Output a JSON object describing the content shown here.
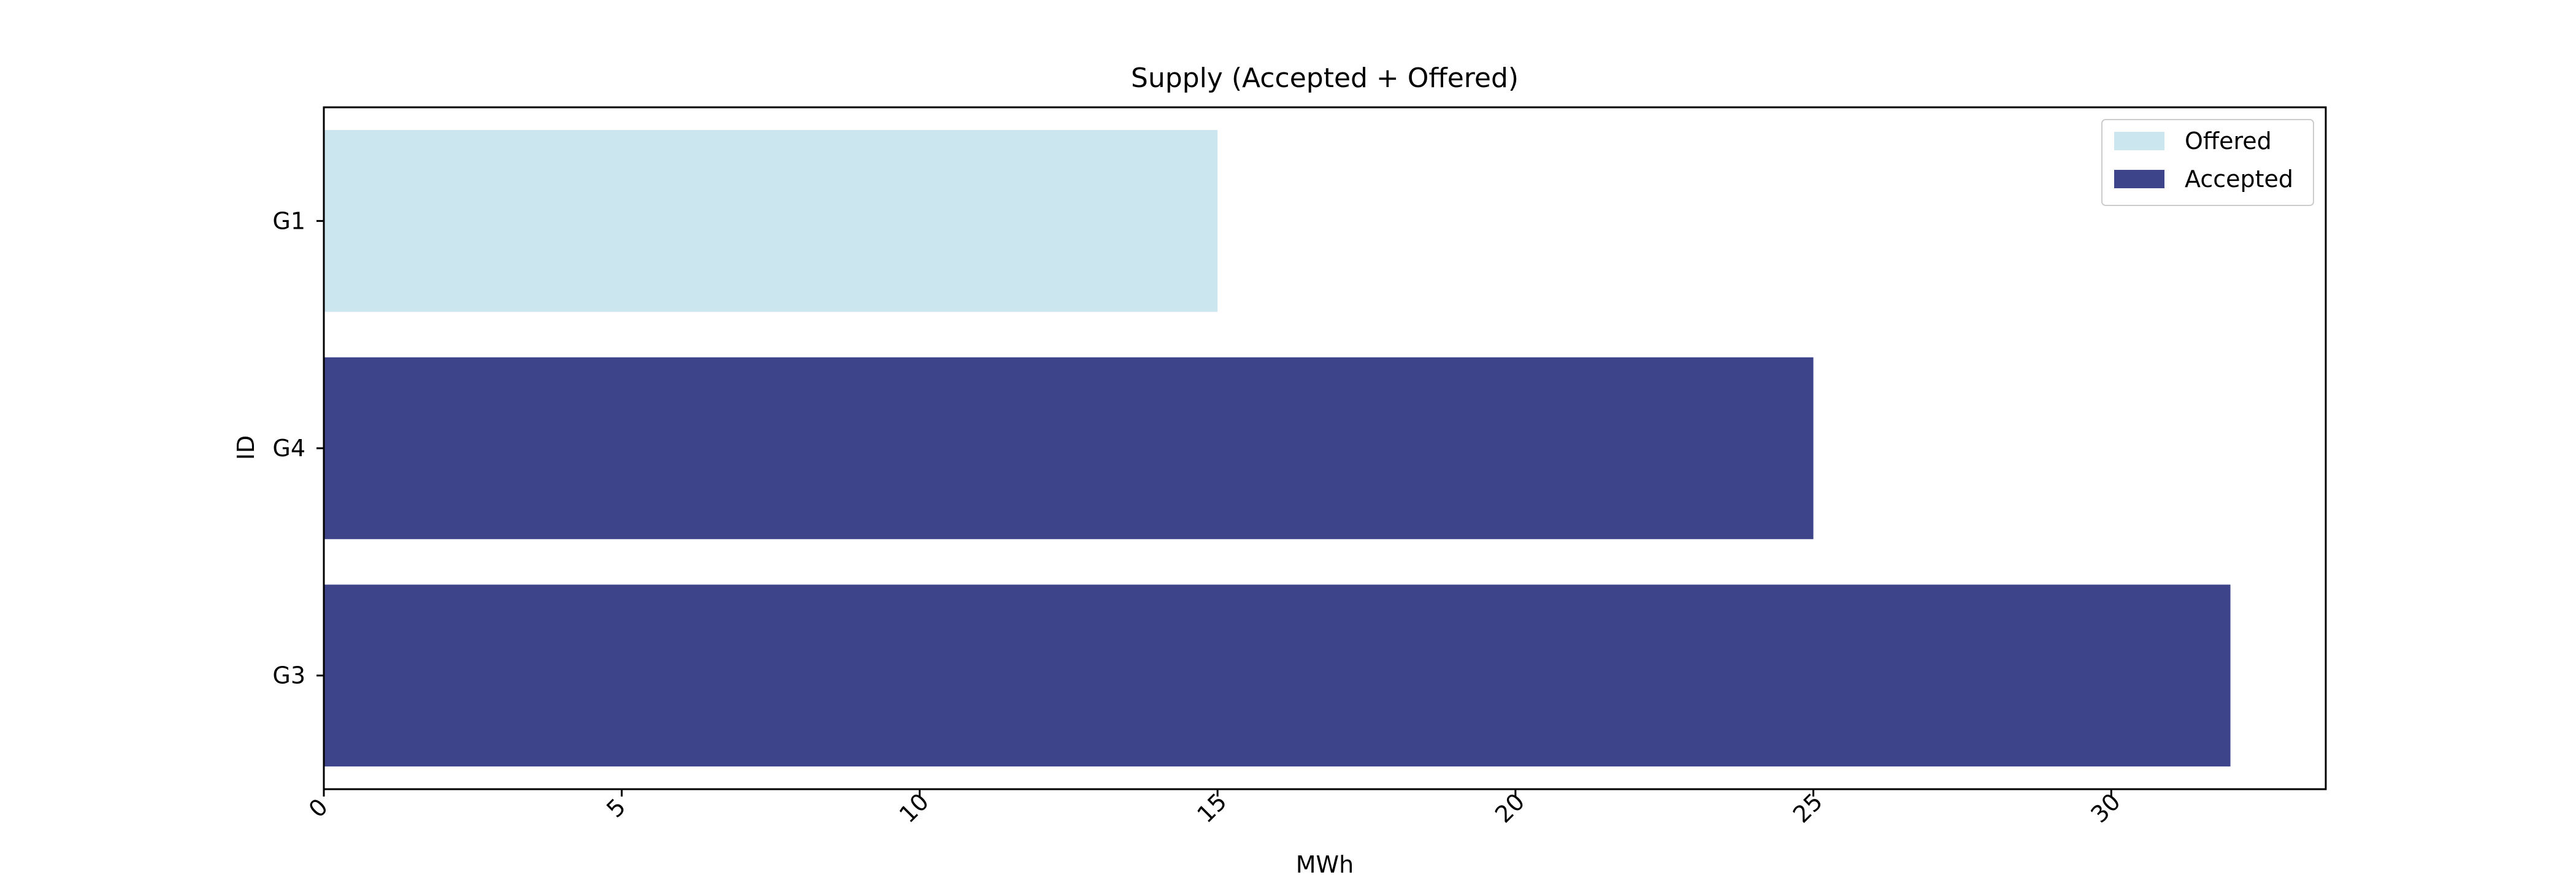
{
  "chart_data": {
    "type": "bar",
    "orientation": "horizontal",
    "title": "Supply (Accepted + Offered)",
    "xlabel": "MWh",
    "ylabel": "ID",
    "categories": [
      "G1",
      "G4",
      "G3"
    ],
    "values": [
      15,
      25,
      32
    ],
    "status": [
      "Offered",
      "Accepted",
      "Accepted"
    ],
    "xlim": [
      0,
      33.6
    ],
    "xticks": [
      0,
      5,
      10,
      15,
      20,
      25,
      30
    ],
    "grid": false,
    "legend": {
      "placement": "top-right",
      "entries": [
        {
          "label": "Offered",
          "color": "#cce6ef"
        },
        {
          "label": "Accepted",
          "color": "#3e448a"
        }
      ]
    },
    "colors": {
      "Offered": "#cce6ef",
      "Accepted": "#3e448a"
    }
  }
}
